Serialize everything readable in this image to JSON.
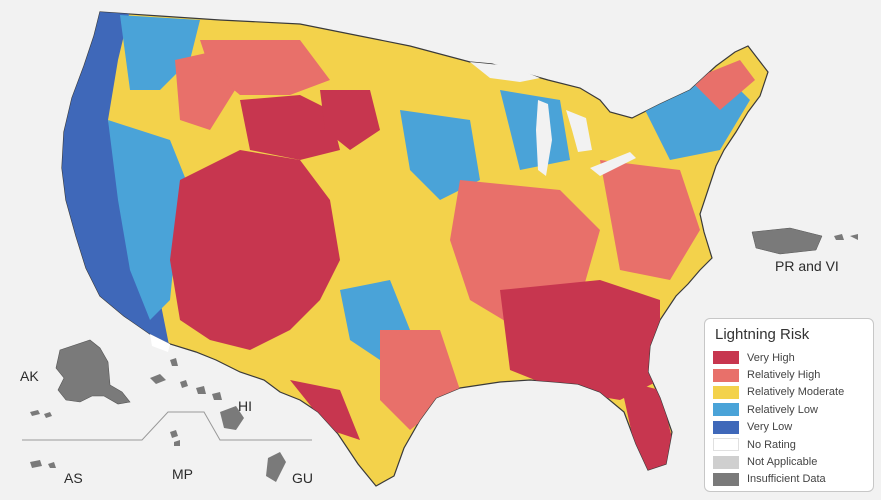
{
  "labels": {
    "pr_vi": "PR and VI",
    "ak": "AK",
    "hi": "HI",
    "as": "AS",
    "mp": "MP",
    "gu": "GU"
  },
  "legend": {
    "title": "Lightning Risk",
    "items": [
      {
        "label": "Very High",
        "color": "#c7364f"
      },
      {
        "label": "Relatively High",
        "color": "#e8706a"
      },
      {
        "label": "Relatively Moderate",
        "color": "#f3d24b"
      },
      {
        "label": "Relatively Low",
        "color": "#4aa3d8"
      },
      {
        "label": "Very Low",
        "color": "#3f68b9"
      },
      {
        "label": "No Rating",
        "color": "#ffffff"
      },
      {
        "label": "Not Applicable",
        "color": "#cfcfcf"
      },
      {
        "label": "Insufficient Data",
        "color": "#7a7a7a"
      }
    ]
  },
  "colors": {
    "background": "#f2f2f2",
    "territory_gray": "#7a7a7a",
    "state_border": "#2a2a2a"
  }
}
